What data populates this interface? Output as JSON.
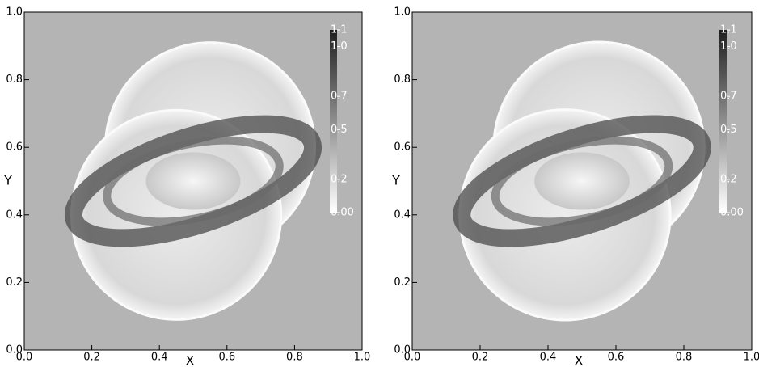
{
  "chart_data": [
    {
      "type": "heatmap",
      "xlabel": "X",
      "ylabel": "Y",
      "xlim": [
        0,
        1
      ],
      "ylim": [
        0,
        1
      ],
      "xticks": [
        {
          "value": 0,
          "label": "0.0"
        },
        0.2,
        0.4,
        0.6,
        0.8,
        {
          "value": 1,
          "label": "1.0"
        }
      ],
      "yticks": [
        {
          "value": 0,
          "label": "0.0"
        },
        0.2,
        0.4,
        0.6,
        0.8,
        {
          "value": 1,
          "label": "1.0"
        }
      ],
      "background": "#b4b4b4",
      "colormap": [
        "#ffffff",
        "#1e1e1e"
      ],
      "clim": [
        0,
        1.1
      ],
      "cticks": [
        {
          "value": 0,
          "label": "0.00"
        },
        0.2,
        0.5,
        0.7,
        {
          "value": 1,
          "label": "1.0"
        },
        1.1
      ]
    },
    {
      "type": "heatmap",
      "xlabel": "X",
      "ylabel": "Y",
      "xlim": [
        0,
        1
      ],
      "ylim": [
        0,
        1
      ],
      "xticks": [
        {
          "value": 0,
          "label": "0.0"
        },
        0.2,
        0.4,
        0.6,
        0.8,
        {
          "value": 1,
          "label": "1.0"
        }
      ],
      "yticks": [
        {
          "value": 0,
          "label": "0.0"
        },
        0.2,
        0.4,
        0.6,
        0.8,
        {
          "value": 1,
          "label": "1.0"
        }
      ],
      "background": "#b4b4b4",
      "colormap": [
        "#ffffff",
        "#1e1e1e"
      ],
      "clim": [
        0,
        1.1
      ],
      "cticks": [
        {
          "value": 0,
          "label": "0.00"
        },
        0.2,
        0.5,
        0.7,
        {
          "value": 1,
          "label": "1.0"
        },
        1.1
      ]
    }
  ]
}
